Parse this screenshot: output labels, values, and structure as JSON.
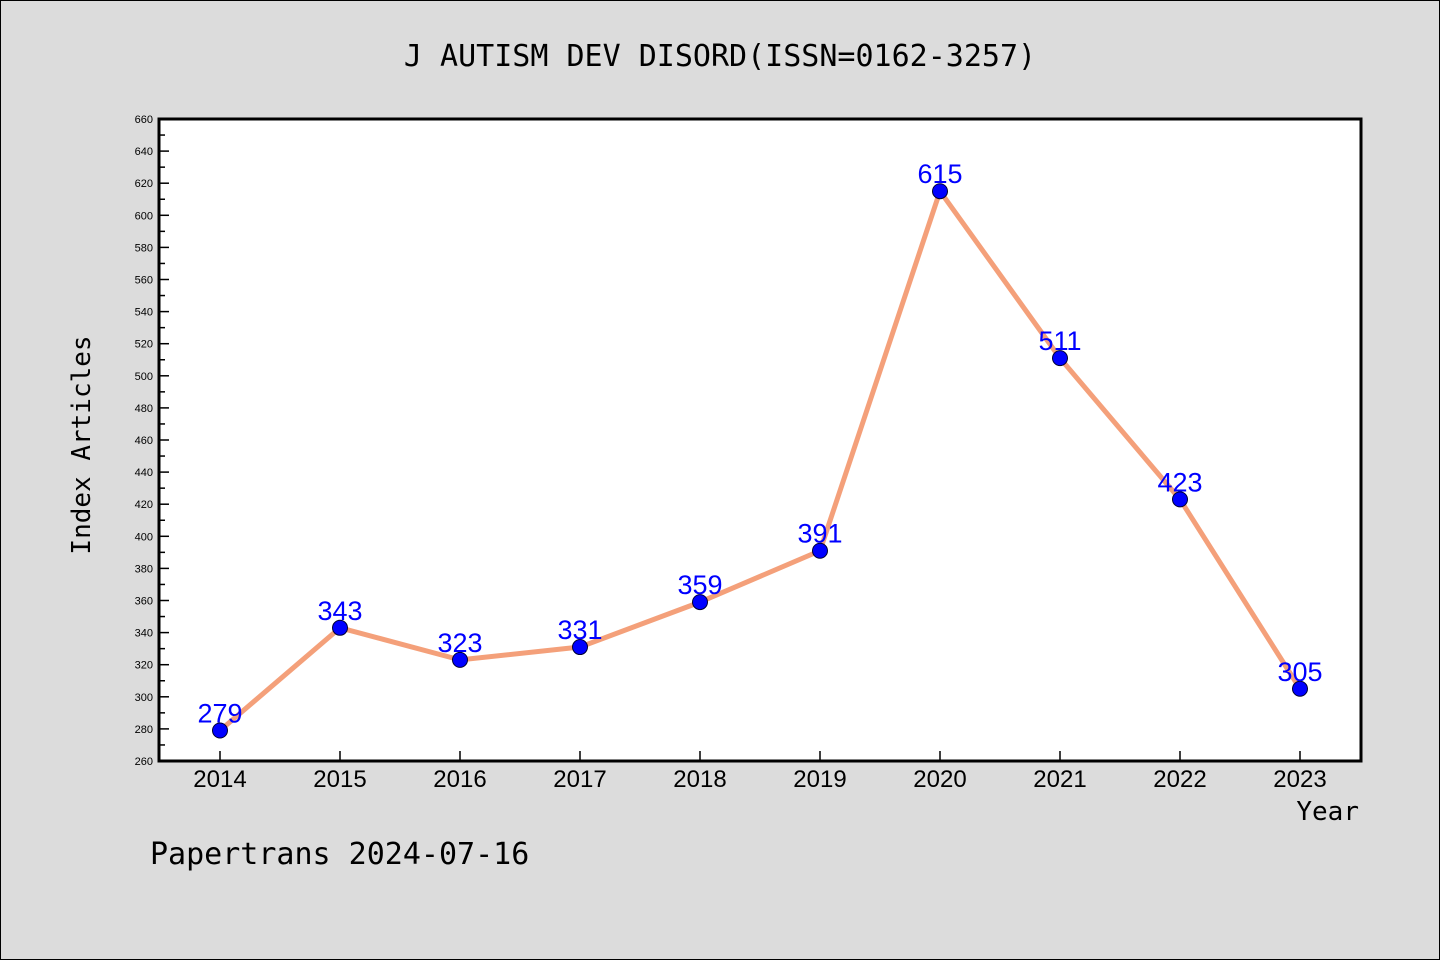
{
  "chart_data": {
    "type": "line",
    "title": "J AUTISM DEV DISORD(ISSN=0162-3257)",
    "xlabel": "Year",
    "ylabel": "Index Articles",
    "categories": [
      "2014",
      "2015",
      "2016",
      "2017",
      "2018",
      "2019",
      "2020",
      "2021",
      "2022",
      "2023"
    ],
    "series": [
      {
        "values": [
          279,
          343,
          323,
          331,
          359,
          391,
          615,
          511,
          423,
          305
        ]
      }
    ],
    "ylim": [
      260,
      660
    ],
    "ytick_step": 20,
    "grid": false,
    "line_color": "#f4a07a",
    "marker_color": "#0000ff",
    "label_color": "#0000ff"
  },
  "footer": "Papertrans 2024-07-16"
}
